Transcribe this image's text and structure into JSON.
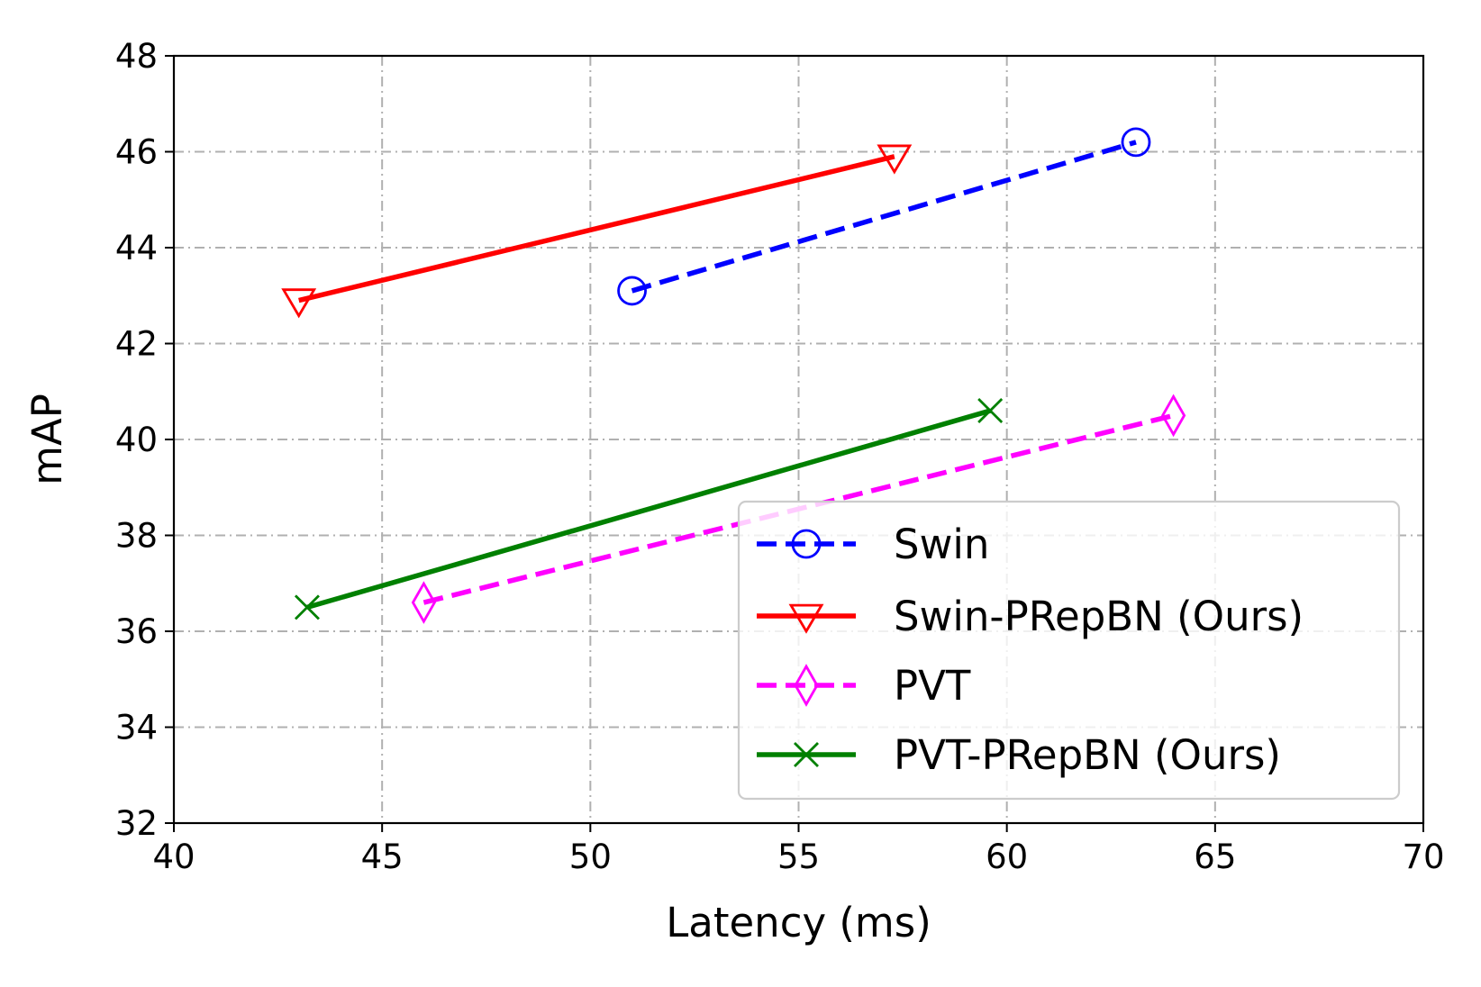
{
  "chart_data": {
    "type": "line",
    "xlabel": "Latency (ms)",
    "ylabel": "mAP",
    "xlim": [
      40,
      70
    ],
    "ylim": [
      32,
      48
    ],
    "xticks": [
      40,
      45,
      50,
      55,
      60,
      65,
      70
    ],
    "yticks": [
      32,
      34,
      36,
      38,
      40,
      42,
      44,
      46,
      48
    ],
    "grid": true,
    "grid_style": "dash-dot",
    "legend_position": "lower-right",
    "series": [
      {
        "name": "Swin",
        "color": "#0000ff",
        "line_style": "dashed",
        "marker": "circle",
        "x": [
          51.0,
          63.1
        ],
        "y": [
          43.1,
          46.2
        ]
      },
      {
        "name": "Swin-PRepBN (Ours)",
        "color": "#ff0000",
        "line_style": "solid",
        "marker": "triangle-down",
        "x": [
          43.0,
          57.3
        ],
        "y": [
          42.9,
          45.9
        ]
      },
      {
        "name": "PVT",
        "color": "#ff00ff",
        "line_style": "dashed",
        "marker": "thin-diamond",
        "x": [
          46.0,
          64.0
        ],
        "y": [
          36.6,
          40.5
        ]
      },
      {
        "name": "PVT-PRepBN (Ours)",
        "color": "#008000",
        "line_style": "solid",
        "marker": "x",
        "x": [
          43.2,
          59.6
        ],
        "y": [
          36.5,
          40.6
        ]
      }
    ]
  }
}
